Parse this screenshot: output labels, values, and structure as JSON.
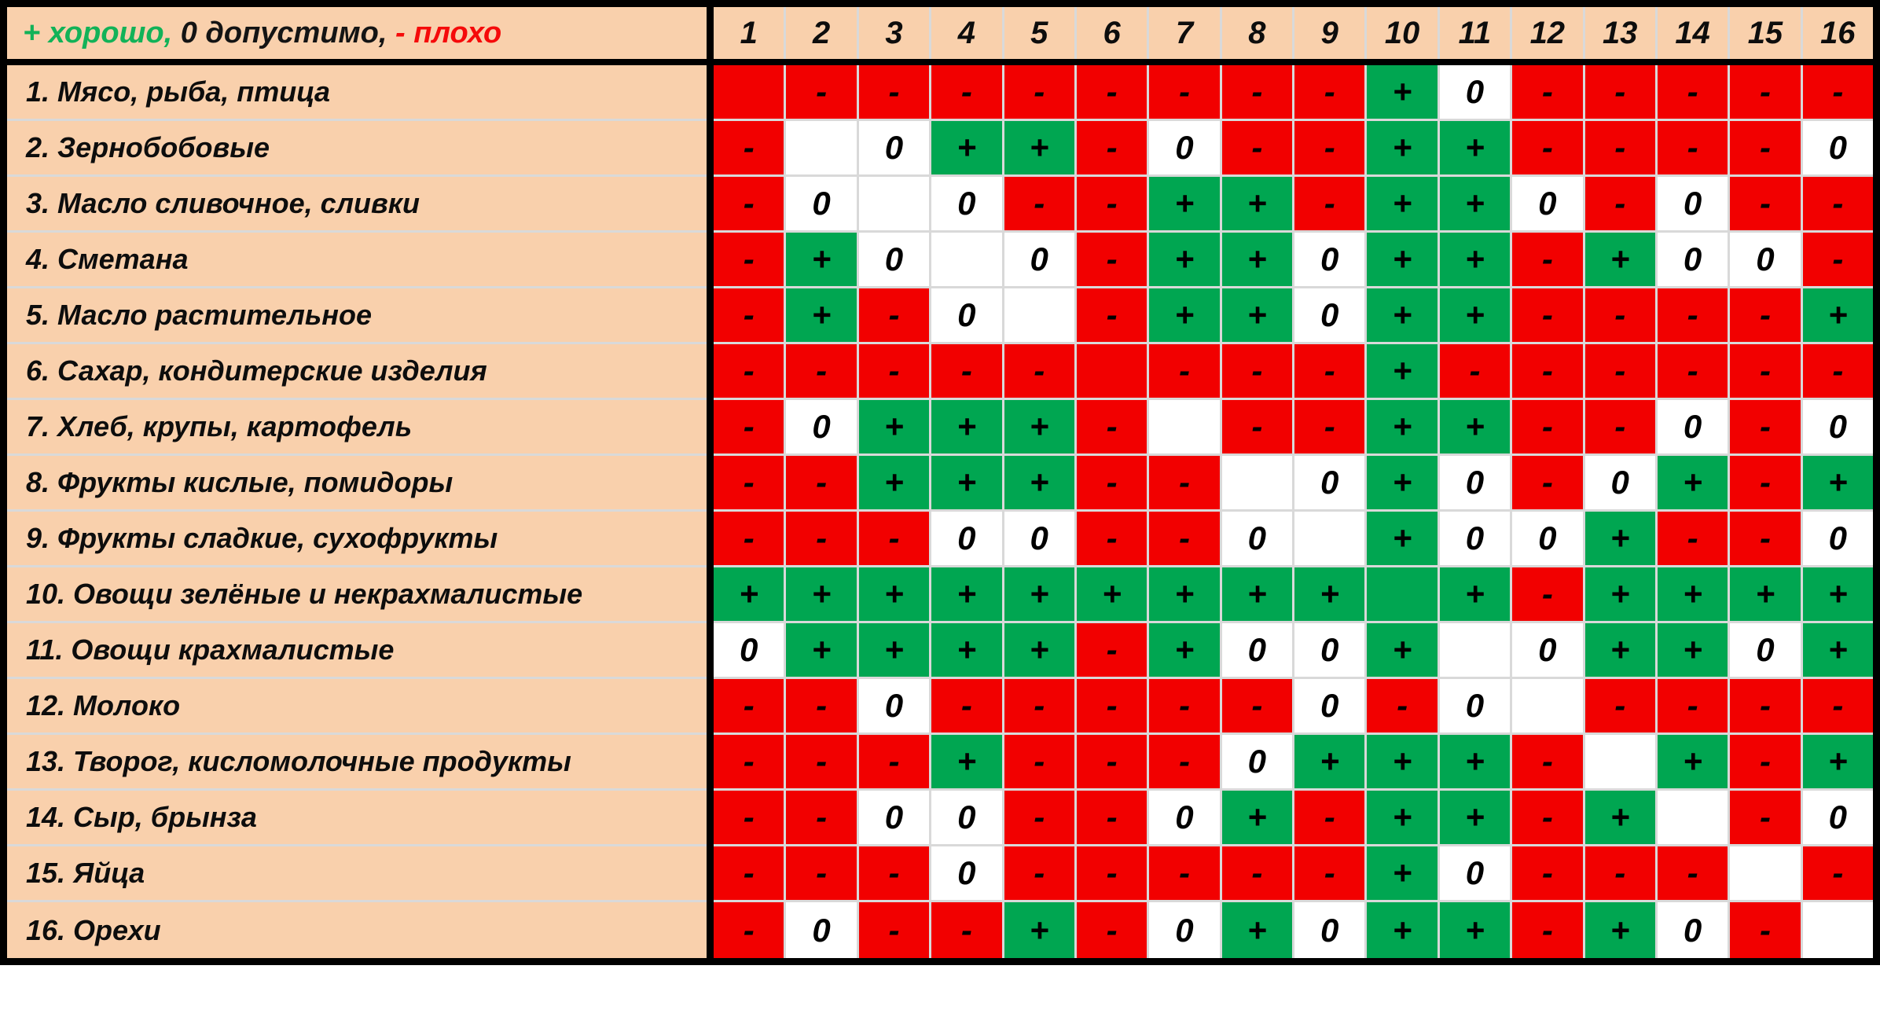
{
  "legend": {
    "parts": [
      {
        "text": "+ хорошо, ",
        "color": "#12B258"
      },
      {
        "text": "0 допустимо, ",
        "color": "#141414"
      },
      {
        "text": "- плохо",
        "color": "#F50A0A"
      }
    ]
  },
  "colors": {
    "good_cell": "#00A651",
    "bad_cell": "#F20000",
    "neutral_cell": "#FFFFFF",
    "header_bg": "#F9D0AC",
    "grid_line": "#D9D9D9",
    "border": "#000000"
  },
  "chart_data": {
    "type": "heatmap",
    "legend_text": "+ хорошо, 0 допустимо, - плохо",
    "x_labels": [
      "1",
      "2",
      "3",
      "4",
      "5",
      "6",
      "7",
      "8",
      "9",
      "10",
      "11",
      "12",
      "13",
      "14",
      "15",
      "16"
    ],
    "y_labels": [
      "1. Мясо, рыба, птица",
      "2. Зернобобовые",
      "3. Масло сливочное, сливки",
      "4. Сметана",
      "5. Масло растительное",
      "6. Сахар, кондитерские изделия",
      "7. Хлеб, крупы, картофель",
      "8. Фрукты кислые, помидоры",
      "9. Фрукты сладкие, сухофрукты",
      "10. Овощи зелёные и некрахмалистые",
      "11. Овощи крахмалистые",
      "12. Молоко",
      "13. Творог, кисломолочные продукты",
      "14. Сыр, брынза",
      "15. Яйца",
      "16. Орехи"
    ],
    "value_legend": {
      "+": "хорошо (зелёная ячейка)",
      "0": "допустимо (белая ячейка)",
      "-": "плохо (красная ячейка)",
      "R": "пустая красная ячейка (диагональ)",
      "G": "пустая зелёная ячейка (диагональ)",
      "W": "пустая белая ячейка (диагональ)"
    },
    "values": [
      [
        "R",
        "-",
        "-",
        "-",
        "-",
        "-",
        "-",
        "-",
        "-",
        "+",
        "0",
        "-",
        "-",
        "-",
        "-",
        "-"
      ],
      [
        "-",
        "W",
        "0",
        "+",
        "+",
        "-",
        "0",
        "-",
        "-",
        "+",
        "+",
        "-",
        "-",
        "-",
        "-",
        "0"
      ],
      [
        "-",
        "0",
        "W",
        "0",
        "-",
        "-",
        "+",
        "+",
        "-",
        "+",
        "+",
        "0",
        "-",
        "0",
        "-",
        "-"
      ],
      [
        "-",
        "+",
        "0",
        "W",
        "0",
        "-",
        "+",
        "+",
        "0",
        "+",
        "+",
        "-",
        "+",
        "0",
        "0",
        "-"
      ],
      [
        "-",
        "+",
        "-",
        "0",
        "W",
        "-",
        "+",
        "+",
        "0",
        "+",
        "+",
        "-",
        "-",
        "-",
        "-",
        "+"
      ],
      [
        "-",
        "-",
        "-",
        "-",
        "-",
        "R",
        "-",
        "-",
        "-",
        "+",
        "-",
        "-",
        "-",
        "-",
        "-",
        "-"
      ],
      [
        "-",
        "0",
        "+",
        "+",
        "+",
        "-",
        "W",
        "-",
        "-",
        "+",
        "+",
        "-",
        "-",
        "0",
        "-",
        "0"
      ],
      [
        "-",
        "-",
        "+",
        "+",
        "+",
        "-",
        "-",
        "W",
        "0",
        "+",
        "0",
        "-",
        "0",
        "+",
        "-",
        "+"
      ],
      [
        "-",
        "-",
        "-",
        "0",
        "0",
        "-",
        "-",
        "0",
        "W",
        "+",
        "0",
        "0",
        "+",
        "-",
        "-",
        "0"
      ],
      [
        "+",
        "+",
        "+",
        "+",
        "+",
        "+",
        "+",
        "+",
        "+",
        "G",
        "+",
        "-",
        "+",
        "+",
        "+",
        "+"
      ],
      [
        "0",
        "+",
        "+",
        "+",
        "+",
        "-",
        "+",
        "0",
        "0",
        "+",
        "W",
        "0",
        "+",
        "+",
        "0",
        "+"
      ],
      [
        "-",
        "-",
        "0",
        "-",
        "-",
        "-",
        "-",
        "-",
        "0",
        "-",
        "0",
        "W",
        "-",
        "-",
        "-",
        "-"
      ],
      [
        "-",
        "-",
        "-",
        "+",
        "-",
        "-",
        "-",
        "0",
        "+",
        "+",
        "+",
        "-",
        "W",
        "+",
        "-",
        "+"
      ],
      [
        "-",
        "-",
        "0",
        "0",
        "-",
        "-",
        "0",
        "+",
        "-",
        "+",
        "+",
        "-",
        "+",
        "W",
        "-",
        "0"
      ],
      [
        "-",
        "-",
        "-",
        "0",
        "-",
        "-",
        "-",
        "-",
        "-",
        "+",
        "0",
        "-",
        "-",
        "-",
        "W",
        "-"
      ],
      [
        "-",
        "0",
        "-",
        "-",
        "+",
        "-",
        "0",
        "+",
        "0",
        "+",
        "+",
        "-",
        "+",
        "0",
        "-",
        "W"
      ]
    ]
  }
}
